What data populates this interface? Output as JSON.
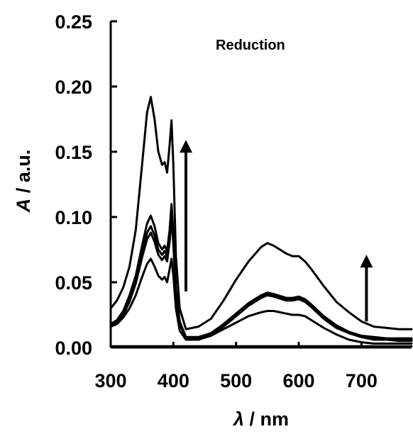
{
  "chart_data": {
    "type": "line",
    "title": "",
    "annotation": "Reduction",
    "xlabel_symbol": "λ",
    "xlabel_unit": " / nm",
    "ylabel_symbol": "A",
    "ylabel_unit": " / a.u.",
    "xlim": [
      300,
      780
    ],
    "ylim": [
      0,
      0.25
    ],
    "x_ticks": [
      300,
      400,
      500,
      600,
      700
    ],
    "x_tick_labels": [
      "300",
      "400",
      "500",
      "600",
      "700"
    ],
    "y_ticks": [
      0,
      0.05,
      0.1,
      0.15,
      0.2,
      0.25
    ],
    "y_tick_labels": [
      "0.00",
      "0.05",
      "0.10",
      "0.15",
      "0.20",
      "0.25"
    ],
    "grid": false,
    "legend": "none",
    "line_color": "#000000",
    "series": [
      {
        "x": [
          300,
          310,
          320,
          330,
          340,
          350,
          358,
          364,
          370,
          376,
          382,
          386,
          390,
          394,
          397,
          400,
          404,
          410,
          420,
          440,
          460,
          480,
          500,
          520,
          540,
          550,
          560,
          580,
          590,
          600,
          610,
          620,
          640,
          660,
          680,
          700,
          720,
          740,
          760,
          780
        ],
        "y": [
          0.03,
          0.036,
          0.046,
          0.062,
          0.09,
          0.14,
          0.18,
          0.192,
          0.175,
          0.15,
          0.14,
          0.142,
          0.134,
          0.155,
          0.174,
          0.14,
          0.07,
          0.03,
          0.014,
          0.016,
          0.022,
          0.036,
          0.052,
          0.066,
          0.077,
          0.08,
          0.078,
          0.072,
          0.07,
          0.07,
          0.066,
          0.06,
          0.047,
          0.035,
          0.027,
          0.02,
          0.016,
          0.015,
          0.014,
          0.014
        ]
      },
      {
        "x": [
          300,
          310,
          320,
          330,
          340,
          350,
          358,
          364,
          370,
          376,
          382,
          386,
          390,
          394,
          397,
          400,
          404,
          410,
          420,
          440,
          460,
          480,
          500,
          520,
          540,
          550,
          560,
          580,
          590,
          600,
          610,
          620,
          640,
          660,
          680,
          700,
          720,
          740,
          760,
          780
        ],
        "y": [
          0.018,
          0.021,
          0.028,
          0.04,
          0.055,
          0.078,
          0.095,
          0.101,
          0.093,
          0.08,
          0.075,
          0.078,
          0.074,
          0.09,
          0.11,
          0.088,
          0.045,
          0.02,
          0.008,
          0.008,
          0.011,
          0.018,
          0.026,
          0.034,
          0.04,
          0.042,
          0.041,
          0.038,
          0.038,
          0.039,
          0.037,
          0.033,
          0.024,
          0.017,
          0.012,
          0.009,
          0.008,
          0.007,
          0.007,
          0.007
        ]
      },
      {
        "x": [
          300,
          310,
          320,
          330,
          340,
          350,
          358,
          364,
          370,
          376,
          382,
          386,
          390,
          394,
          397,
          400,
          404,
          410,
          420,
          440,
          460,
          480,
          500,
          520,
          540,
          550,
          560,
          580,
          590,
          600,
          610,
          620,
          640,
          660,
          680,
          700,
          720,
          740,
          760,
          780
        ],
        "y": [
          0.017,
          0.02,
          0.026,
          0.037,
          0.052,
          0.073,
          0.088,
          0.093,
          0.086,
          0.075,
          0.071,
          0.074,
          0.07,
          0.085,
          0.104,
          0.083,
          0.042,
          0.019,
          0.007,
          0.007,
          0.01,
          0.017,
          0.025,
          0.033,
          0.039,
          0.041,
          0.04,
          0.037,
          0.037,
          0.038,
          0.036,
          0.032,
          0.023,
          0.016,
          0.011,
          0.008,
          0.007,
          0.006,
          0.006,
          0.006
        ]
      },
      {
        "x": [
          300,
          310,
          320,
          330,
          340,
          350,
          358,
          364,
          370,
          376,
          382,
          386,
          390,
          394,
          397,
          400,
          404,
          410,
          420,
          440,
          460,
          480,
          500,
          520,
          540,
          550,
          560,
          580,
          590,
          600,
          610,
          620,
          640,
          660,
          680,
          700,
          720,
          740,
          760,
          780
        ],
        "y": [
          0.016,
          0.019,
          0.025,
          0.035,
          0.049,
          0.069,
          0.083,
          0.088,
          0.081,
          0.071,
          0.067,
          0.07,
          0.066,
          0.081,
          0.099,
          0.079,
          0.04,
          0.018,
          0.007,
          0.007,
          0.01,
          0.016,
          0.024,
          0.032,
          0.038,
          0.04,
          0.039,
          0.036,
          0.036,
          0.037,
          0.035,
          0.031,
          0.022,
          0.015,
          0.011,
          0.008,
          0.006,
          0.006,
          0.005,
          0.005
        ]
      },
      {
        "x": [
          300,
          310,
          320,
          330,
          340,
          350,
          358,
          364,
          370,
          376,
          382,
          386,
          390,
          394,
          397,
          400,
          404,
          410,
          420,
          440,
          460,
          480,
          500,
          520,
          540,
          550,
          560,
          580,
          590,
          600,
          610,
          620,
          640,
          660,
          680,
          700,
          720,
          740,
          760,
          780
        ],
        "y": [
          0.016,
          0.018,
          0.023,
          0.03,
          0.04,
          0.054,
          0.064,
          0.068,
          0.062,
          0.055,
          0.052,
          0.054,
          0.05,
          0.06,
          0.068,
          0.055,
          0.03,
          0.013,
          0.006,
          0.006,
          0.009,
          0.014,
          0.019,
          0.024,
          0.027,
          0.028,
          0.028,
          0.026,
          0.025,
          0.025,
          0.024,
          0.021,
          0.015,
          0.01,
          0.006,
          0.004,
          0.003,
          0.003,
          0.003,
          0.003
        ]
      },
      {
        "x": [
          300,
          350,
          400,
          420,
          450,
          500,
          550,
          600,
          650,
          700,
          750,
          780
        ],
        "y": [
          0.001,
          0.001,
          0.001,
          0.001,
          0.001,
          0.001,
          0.001,
          0.001,
          0.001,
          0.001,
          0.001,
          0.001
        ]
      }
    ],
    "arrows": [
      {
        "x": 420,
        "y_from": 0.043,
        "y_to": 0.158,
        "direction": "up"
      },
      {
        "x": 708,
        "y_from": 0.02,
        "y_to": 0.07,
        "direction": "up"
      }
    ]
  }
}
